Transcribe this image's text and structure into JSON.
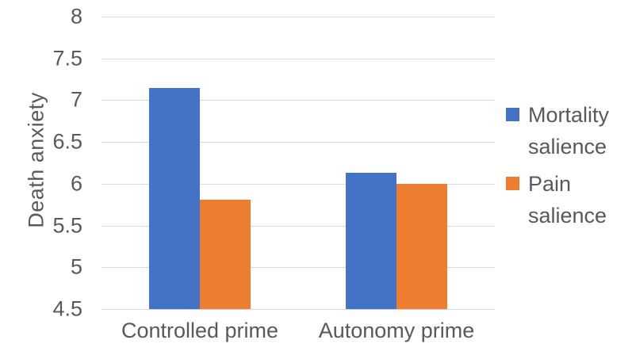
{
  "chart_data": {
    "type": "bar",
    "title": "",
    "xlabel": "",
    "ylabel": "Death anxiety",
    "categories": [
      "Controlled prime",
      "Autonomy prime"
    ],
    "series": [
      {
        "name": "Mortality salience",
        "color": "#4472C4",
        "values": [
          7.15,
          6.13
        ]
      },
      {
        "name": "Pain salience",
        "color": "#ED7D31",
        "values": [
          5.81,
          6.0
        ]
      }
    ],
    "ylim": [
      4.5,
      8
    ],
    "ytick_step": 0.5,
    "yticks": [
      {
        "value": 8,
        "label": "8"
      },
      {
        "value": 7.5,
        "label": "7.5"
      },
      {
        "value": 7,
        "label": "7"
      },
      {
        "value": 6.5,
        "label": "6.5"
      },
      {
        "value": 6,
        "label": "6"
      },
      {
        "value": 5.5,
        "label": "5.5"
      },
      {
        "value": 5,
        "label": "5"
      },
      {
        "value": 4.5,
        "label": "4.5"
      }
    ],
    "grid": true,
    "legend_position": "right",
    "colors": {
      "text": "#595959",
      "gridline": "#D9D9D9",
      "background": "#FFFFFF"
    }
  }
}
